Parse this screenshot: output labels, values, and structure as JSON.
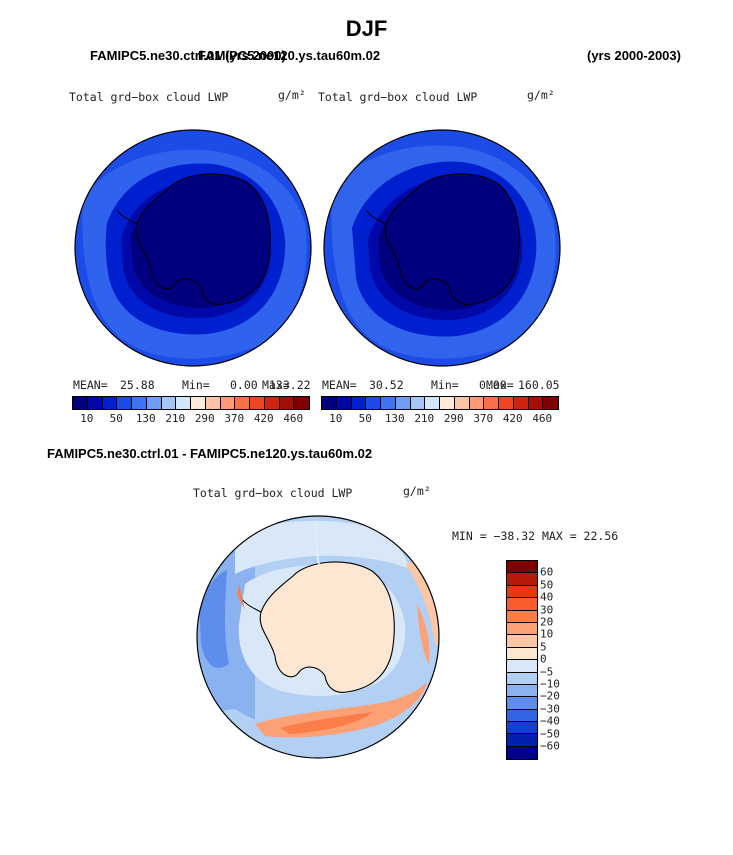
{
  "title": "DJF",
  "panel_a": {
    "case_header": "FAMIPC5.ne30.ctrl.01 (yrs 2000)",
    "field_title": "Total grd−box cloud LWP",
    "units": "g/m²",
    "mean_label": "MEAN=",
    "mean_value": "25.88",
    "min_label": "Min=",
    "min_value": "0.00",
    "max_label": "Max=",
    "max_value": "133.22"
  },
  "panel_b": {
    "case_header": "FAMIPC5.ne120.ys.tau60m.02",
    "years": "(yrs 2000-2003)",
    "field_title": "Total grd−box cloud LWP",
    "units": "g/m²",
    "mean_label": "MEAN=",
    "mean_value": "30.52",
    "min_label": "Min=",
    "min_value": "0.00",
    "max_label": "Max=",
    "max_value": "160.05"
  },
  "panel_c": {
    "case_header": "FAMIPC5.ne30.ctrl.01 - FAMIPC5.ne120.ys.tau60m.02",
    "field_title": "Total grd−box cloud LWP",
    "units": "g/m²",
    "minmax": "MIN = −38.32 MAX =  22.56"
  },
  "colorbar_abs": {
    "tick_labels": [
      "10",
      "50",
      "130",
      "210",
      "290",
      "370",
      "420",
      "460"
    ],
    "colors": [
      "#00007f",
      "#0008a8",
      "#0020d0",
      "#1c4ce8",
      "#3f74f0",
      "#709ef4",
      "#a3c6f7",
      "#d2e6fa",
      "#fdeadb",
      "#fcc4a3",
      "#fb9a73",
      "#f87048",
      "#ef4522",
      "#d0240e",
      "#a50f05",
      "#7f0000"
    ]
  },
  "colorbar_diff": {
    "labels": [
      "60",
      "50",
      "40",
      "30",
      "20",
      "10",
      "5",
      "0",
      "−5",
      "−10",
      "−20",
      "−30",
      "−40",
      "−50",
      "−60"
    ],
    "colors": [
      "#7f0000",
      "#b31a07",
      "#e33a12",
      "#f95d2c",
      "#fb7e4a",
      "#fca076",
      "#fdc7a6",
      "#fde6d2",
      "#d8e8f8",
      "#b2cff4",
      "#8bb2f0",
      "#5f8deb",
      "#3366e4",
      "#1340d4",
      "#0020b0",
      "#00008a"
    ]
  }
}
